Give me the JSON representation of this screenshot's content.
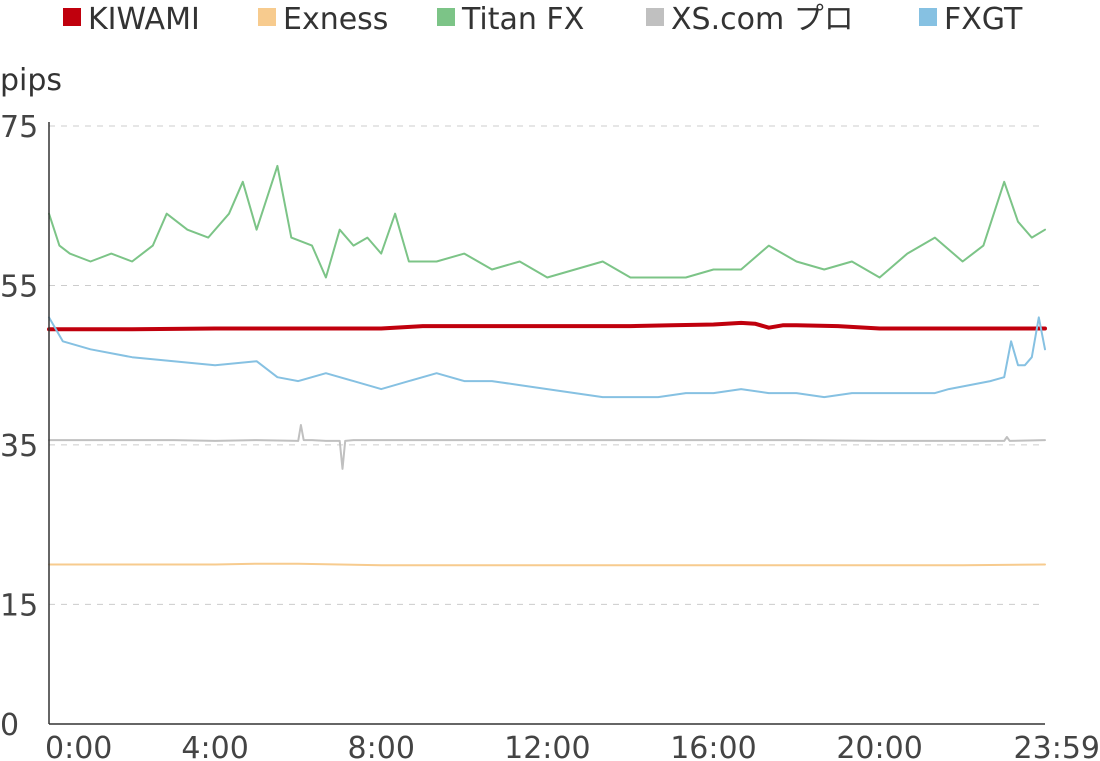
{
  "chart_data": {
    "type": "line",
    "ylabel": "pips",
    "ylim": [
      0,
      75
    ],
    "yticks": [
      "0",
      "15",
      "35",
      "55",
      "75"
    ],
    "ytick_values": [
      0,
      15,
      35,
      55,
      75
    ],
    "xlim_minutes": [
      0,
      1439
    ],
    "xticks": [
      "0:00",
      "4:00",
      "8:00",
      "12:00",
      "16:00",
      "20:00",
      "23:59"
    ],
    "xtick_values_minutes": [
      0,
      240,
      480,
      720,
      960,
      1200,
      1439
    ],
    "grid": true,
    "legend_position": "top",
    "series": [
      {
        "name": "KIWAMI",
        "color": "#c0000d",
        "x_minutes": [
          0,
          120,
          240,
          420,
          480,
          540,
          600,
          660,
          720,
          780,
          840,
          900,
          960,
          1000,
          1020,
          1040,
          1060,
          1080,
          1140,
          1200,
          1260,
          1320,
          1380,
          1439
        ],
        "values": [
          49.5,
          49.5,
          49.6,
          49.6,
          49.6,
          49.9,
          49.9,
          49.9,
          49.9,
          49.9,
          49.9,
          50.0,
          50.1,
          50.3,
          50.2,
          49.7,
          50.0,
          50.0,
          49.9,
          49.6,
          49.6,
          49.6,
          49.6,
          49.6
        ]
      },
      {
        "name": "Exness",
        "color": "#f7cb8e",
        "x_minutes": [
          0,
          120,
          240,
          300,
          360,
          420,
          480,
          600,
          720,
          840,
          960,
          1080,
          1200,
          1320,
          1439
        ],
        "values": [
          20.0,
          20.0,
          20.0,
          20.1,
          20.1,
          20.0,
          19.9,
          19.9,
          19.9,
          19.9,
          19.9,
          19.9,
          19.9,
          19.9,
          20.0
        ]
      },
      {
        "name": "Titan FX",
        "color": "#7cc487",
        "x_minutes": [
          0,
          15,
          30,
          60,
          90,
          120,
          150,
          170,
          200,
          230,
          260,
          280,
          300,
          330,
          350,
          380,
          400,
          420,
          440,
          460,
          480,
          500,
          520,
          560,
          600,
          640,
          680,
          720,
          760,
          800,
          840,
          880,
          920,
          960,
          1000,
          1040,
          1080,
          1120,
          1160,
          1200,
          1240,
          1280,
          1320,
          1350,
          1380,
          1400,
          1420,
          1439
        ],
        "values": [
          64,
          60,
          59,
          58,
          59,
          58,
          60,
          64,
          62,
          61,
          64,
          68,
          62,
          70,
          61,
          60,
          56,
          62,
          60,
          61,
          59,
          64,
          58,
          58,
          59,
          57,
          58,
          56,
          57,
          58,
          56,
          56,
          56,
          57,
          57,
          60,
          58,
          57,
          58,
          56,
          59,
          61,
          58,
          60,
          68,
          63,
          61,
          62
        ]
      },
      {
        "name": "XS.com プロ",
        "color": "#c0c0c0",
        "x_minutes": [
          0,
          60,
          120,
          180,
          240,
          300,
          360,
          364,
          368,
          380,
          400,
          420,
          424,
          428,
          440,
          480,
          600,
          720,
          840,
          960,
          1080,
          1200,
          1320,
          1380,
          1384,
          1388,
          1439
        ],
        "values": [
          35.6,
          35.6,
          35.6,
          35.6,
          35.5,
          35.6,
          35.5,
          37.5,
          35.6,
          35.6,
          35.5,
          35.5,
          32.0,
          35.5,
          35.6,
          35.6,
          35.6,
          35.6,
          35.6,
          35.6,
          35.6,
          35.5,
          35.5,
          35.5,
          36.0,
          35.5,
          35.6
        ]
      },
      {
        "name": "FXGT",
        "color": "#86c1e2",
        "x_minutes": [
          0,
          20,
          60,
          120,
          180,
          240,
          300,
          330,
          360,
          400,
          440,
          480,
          520,
          560,
          600,
          640,
          680,
          720,
          760,
          800,
          840,
          880,
          920,
          960,
          1000,
          1040,
          1080,
          1120,
          1160,
          1200,
          1240,
          1280,
          1300,
          1330,
          1360,
          1380,
          1390,
          1400,
          1410,
          1420,
          1430,
          1439
        ],
        "values": [
          51,
          48,
          47,
          46,
          45.5,
          45,
          45.5,
          43.5,
          43,
          44,
          43,
          42,
          43,
          44,
          43,
          43,
          42.5,
          42,
          41.5,
          41,
          41,
          41,
          41.5,
          41.5,
          42,
          41.5,
          41.5,
          41,
          41.5,
          41.5,
          41.5,
          41.5,
          42,
          42.5,
          43,
          43.5,
          48,
          45,
          45,
          46,
          51,
          47
        ]
      }
    ]
  }
}
